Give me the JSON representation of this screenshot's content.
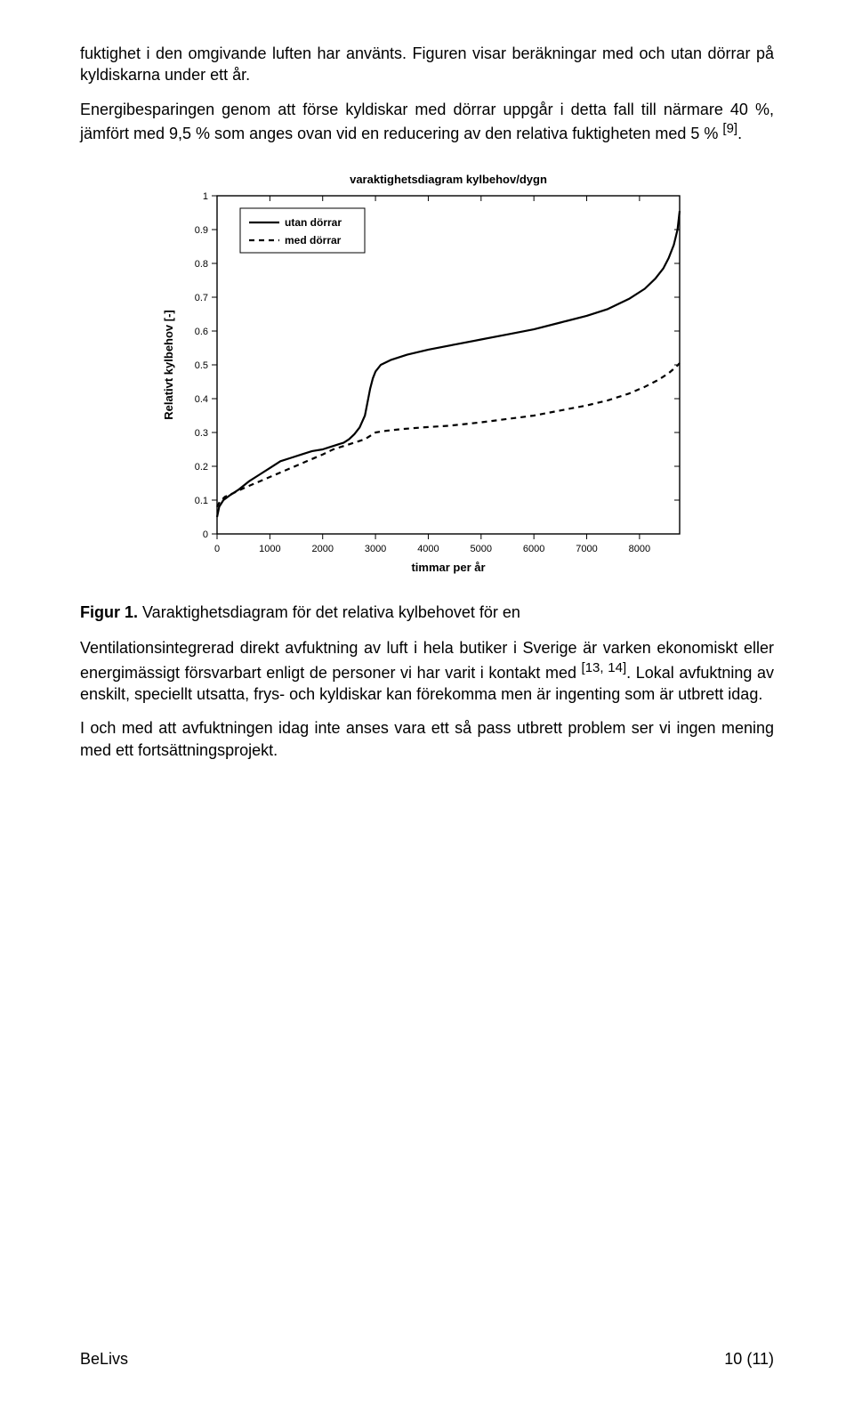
{
  "paragraphs": {
    "p1": "fuktighet i den omgivande luften har använts. Figuren visar beräkningar med och utan dörrar på kyldiskarna under ett år.",
    "p2a": "Energibesparingen genom att förse kyldiskar med dörrar uppgår i detta fall till närmare 40 %, jämfört med 9,5 % som anges ovan vid en reducering av den relativa fuktigheten med 5 % ",
    "p2_ref": "[9]",
    "p2b": ".",
    "p3a": "Ventilationsintegrerad direkt avfuktning av luft i hela butiker i Sverige är varken ekonomiskt eller energimässigt försvarbart enligt de personer vi har varit i kontakt med ",
    "p3_ref": "[13, 14]",
    "p3b": ". Lokal avfuktning av enskilt, speciellt utsatta, frys- och kyldiskar kan förekomma men är ingenting som är utbrett idag.",
    "p4": "I och med att avfuktningen idag inte anses vara ett så pass utbrett problem ser vi ingen mening med ett fortsättningsprojekt."
  },
  "caption": {
    "label": "Figur 1.",
    "text": " Varaktighetsdiagram för det relativa kylbehovet för en"
  },
  "chart": {
    "title": "varaktighetsdiagram kylbehov/dygn",
    "legend": {
      "series1": "utan dörrar",
      "series2": "med dörrar"
    },
    "xlabel": "timmar per år",
    "ylabel": "Relativt kylbehov [-]",
    "xlim": [
      0,
      8760
    ],
    "ylim": [
      0,
      1
    ],
    "xticks": [
      0,
      1000,
      2000,
      3000,
      4000,
      5000,
      6000,
      7000,
      8000
    ],
    "yticks": [
      0,
      0.1,
      0.2,
      0.3,
      0.4,
      0.5,
      0.6,
      0.7,
      0.8,
      0.9,
      1
    ],
    "title_fontsize": 13,
    "label_fontsize": 13,
    "tick_fontsize": 11,
    "bg_color": "#ffffff",
    "axis_color": "#000000",
    "series": [
      {
        "name": "utan dörrar",
        "color": "#000000",
        "width": 2.2,
        "dash": "none",
        "points": [
          [
            0,
            0.05
          ],
          [
            40,
            0.08
          ],
          [
            120,
            0.1
          ],
          [
            250,
            0.115
          ],
          [
            400,
            0.13
          ],
          [
            600,
            0.155
          ],
          [
            800,
            0.175
          ],
          [
            1000,
            0.195
          ],
          [
            1200,
            0.215
          ],
          [
            1400,
            0.225
          ],
          [
            1600,
            0.235
          ],
          [
            1800,
            0.245
          ],
          [
            2000,
            0.25
          ],
          [
            2100,
            0.255
          ],
          [
            2200,
            0.26
          ],
          [
            2400,
            0.27
          ],
          [
            2500,
            0.28
          ],
          [
            2600,
            0.295
          ],
          [
            2700,
            0.315
          ],
          [
            2800,
            0.35
          ],
          [
            2850,
            0.39
          ],
          [
            2900,
            0.43
          ],
          [
            2950,
            0.46
          ],
          [
            3000,
            0.48
          ],
          [
            3100,
            0.5
          ],
          [
            3300,
            0.515
          ],
          [
            3600,
            0.53
          ],
          [
            4000,
            0.545
          ],
          [
            4500,
            0.56
          ],
          [
            5000,
            0.575
          ],
          [
            5500,
            0.59
          ],
          [
            6000,
            0.605
          ],
          [
            6500,
            0.625
          ],
          [
            7000,
            0.645
          ],
          [
            7400,
            0.665
          ],
          [
            7800,
            0.695
          ],
          [
            8100,
            0.725
          ],
          [
            8300,
            0.755
          ],
          [
            8450,
            0.785
          ],
          [
            8550,
            0.815
          ],
          [
            8650,
            0.855
          ],
          [
            8720,
            0.9
          ],
          [
            8760,
            0.955
          ]
        ]
      },
      {
        "name": "med dörrar",
        "color": "#000000",
        "width": 2.2,
        "dash": "6,5",
        "points": [
          [
            0,
            0.08
          ],
          [
            50,
            0.095
          ],
          [
            150,
            0.11
          ],
          [
            300,
            0.12
          ],
          [
            500,
            0.135
          ],
          [
            800,
            0.155
          ],
          [
            1100,
            0.175
          ],
          [
            1400,
            0.195
          ],
          [
            1700,
            0.215
          ],
          [
            2000,
            0.235
          ],
          [
            2200,
            0.25
          ],
          [
            2400,
            0.26
          ],
          [
            2600,
            0.27
          ],
          [
            2800,
            0.28
          ],
          [
            2900,
            0.29
          ],
          [
            3000,
            0.3
          ],
          [
            3200,
            0.305
          ],
          [
            3500,
            0.31
          ],
          [
            3900,
            0.315
          ],
          [
            4400,
            0.32
          ],
          [
            5000,
            0.33
          ],
          [
            5500,
            0.34
          ],
          [
            6000,
            0.35
          ],
          [
            6500,
            0.365
          ],
          [
            7000,
            0.38
          ],
          [
            7400,
            0.395
          ],
          [
            7800,
            0.415
          ],
          [
            8100,
            0.435
          ],
          [
            8350,
            0.455
          ],
          [
            8550,
            0.475
          ],
          [
            8700,
            0.495
          ],
          [
            8760,
            0.505
          ]
        ]
      }
    ]
  },
  "footer": {
    "left": "BeLivs",
    "right": "10 (11)"
  }
}
